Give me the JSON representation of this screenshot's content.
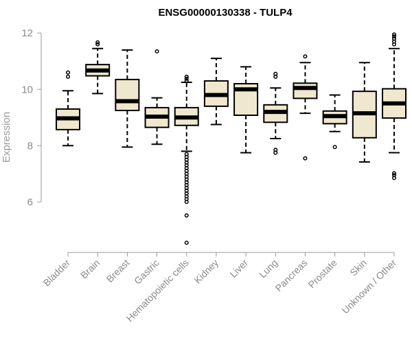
{
  "chart_data": {
    "type": "boxplot",
    "title": "ENSG00000130338 - TULP4",
    "xlabel": "",
    "ylabel": "Expression",
    "ylim": [
      4.4,
      12.2
    ],
    "yticks": [
      6,
      8,
      10,
      12
    ],
    "box_fill": "#efe8cf",
    "box_stroke": "#000000",
    "median_color": "#000000",
    "categories": [
      "Bladder",
      "Brain",
      "Breast",
      "Gastric",
      "Hematopoietic cells",
      "Kidney",
      "Liver",
      "Lung",
      "Pancreas",
      "Prostate",
      "Skin",
      "Unknown / Other"
    ],
    "boxes": [
      {
        "name": "Bladder",
        "whisker_low": 8.0,
        "q1": 8.57,
        "median": 8.97,
        "q3": 9.3,
        "whisker_high": 9.95,
        "outliers": [
          10.45,
          10.6
        ]
      },
      {
        "name": "Brain",
        "whisker_low": 9.85,
        "q1": 10.48,
        "median": 10.67,
        "q3": 10.88,
        "whisker_high": 11.45,
        "outliers": [
          11.6,
          11.67
        ]
      },
      {
        "name": "Breast",
        "whisker_low": 7.95,
        "q1": 9.25,
        "median": 9.58,
        "q3": 10.35,
        "whisker_high": 11.4,
        "outliers": []
      },
      {
        "name": "Gastric",
        "whisker_low": 8.05,
        "q1": 8.65,
        "median": 9.03,
        "q3": 9.35,
        "whisker_high": 9.7,
        "outliers": [
          11.35
        ]
      },
      {
        "name": "Hematopoietic cells",
        "whisker_low": 7.8,
        "q1": 8.72,
        "median": 9.0,
        "q3": 9.35,
        "whisker_high": 10.25,
        "outliers": [
          10.3,
          10.38,
          10.45,
          7.7,
          7.6,
          7.5,
          7.4,
          7.3,
          7.2,
          7.1,
          7.0,
          6.9,
          6.8,
          6.7,
          6.6,
          6.5,
          6.4,
          6.3,
          6.2,
          6.1,
          6.0,
          5.52,
          4.55
        ]
      },
      {
        "name": "Kidney",
        "whisker_low": 8.75,
        "q1": 9.4,
        "median": 9.8,
        "q3": 10.3,
        "whisker_high": 11.1,
        "outliers": []
      },
      {
        "name": "Liver",
        "whisker_low": 7.75,
        "q1": 9.08,
        "median": 10.0,
        "q3": 10.2,
        "whisker_high": 10.8,
        "outliers": []
      },
      {
        "name": "Lung",
        "whisker_low": 8.25,
        "q1": 8.83,
        "median": 9.2,
        "q3": 9.45,
        "whisker_high": 10.05,
        "outliers": [
          10.45,
          10.55,
          7.75,
          7.85
        ]
      },
      {
        "name": "Pancreas",
        "whisker_low": 9.15,
        "q1": 9.68,
        "median": 10.05,
        "q3": 10.22,
        "whisker_high": 10.95,
        "outliers": [
          11.17,
          7.55
        ]
      },
      {
        "name": "Prostate",
        "whisker_low": 8.5,
        "q1": 8.78,
        "median": 9.05,
        "q3": 9.23,
        "whisker_high": 9.8,
        "outliers": [
          7.95
        ]
      },
      {
        "name": "Skin",
        "whisker_low": 7.42,
        "q1": 8.28,
        "median": 9.15,
        "q3": 9.93,
        "whisker_high": 10.95,
        "outliers": []
      },
      {
        "name": "Unknown / Other",
        "whisker_low": 7.75,
        "q1": 8.98,
        "median": 9.5,
        "q3": 10.02,
        "whisker_high": 11.45,
        "outliers": [
          11.6,
          11.7,
          11.8,
          11.88,
          11.95,
          6.85,
          6.95,
          7.02
        ]
      }
    ]
  }
}
